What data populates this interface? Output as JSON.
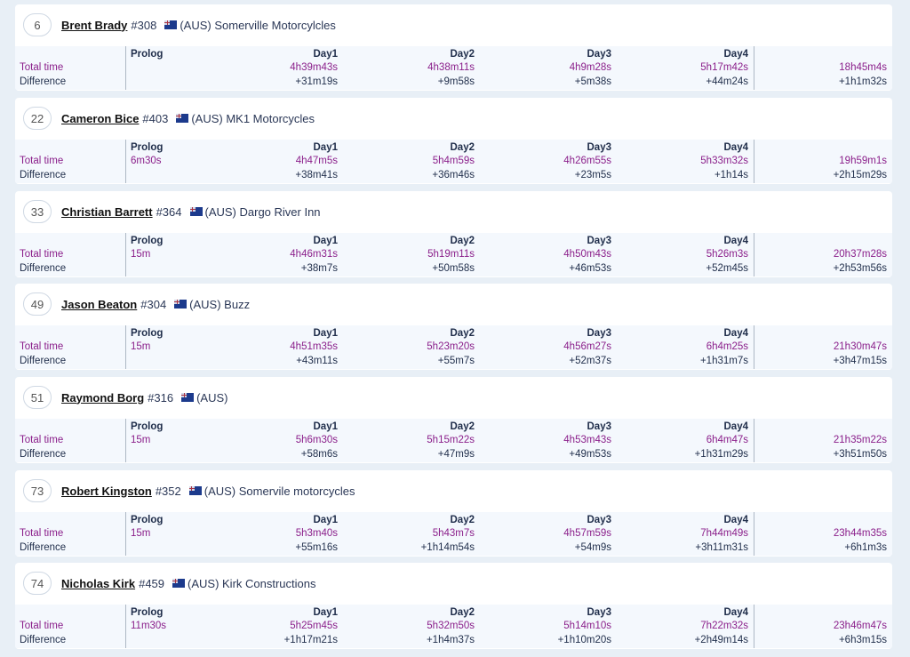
{
  "labels": {
    "total": "Total time",
    "difference": "Difference",
    "columns": [
      "Prolog",
      "Day1",
      "Day2",
      "Day3",
      "Day4"
    ]
  },
  "colors": {
    "time": "#8a1e8a",
    "text": "#1f2d4a",
    "background": "#e8eff6"
  },
  "riders": [
    {
      "rank": "6",
      "name": "Brent Brady",
      "number": "#308",
      "flag": "australia-flag-icon",
      "team": "(AUS) Somerville Motorcylcles",
      "total": [
        "",
        "4h39m43s",
        "4h38m11s",
        "4h9m28s",
        "5h17m42s",
        "18h45m4s"
      ],
      "diff": [
        "",
        "+31m19s",
        "+9m58s",
        "+5m38s",
        "+44m24s",
        "+1h1m32s"
      ]
    },
    {
      "rank": "22",
      "name": "Cameron Bice",
      "number": "#403",
      "flag": "australia-flag-icon",
      "team": "(AUS) MK1 Motorcycles",
      "total": [
        "6m30s",
        "4h47m5s",
        "5h4m59s",
        "4h26m55s",
        "5h33m32s",
        "19h59m1s"
      ],
      "diff": [
        "",
        "+38m41s",
        "+36m46s",
        "+23m5s",
        "+1h14s",
        "+2h15m29s"
      ]
    },
    {
      "rank": "33",
      "name": "Christian Barrett",
      "number": "#364",
      "flag": "australia-flag-icon",
      "team": "(AUS) Dargo River Inn",
      "total": [
        "15m",
        "4h46m31s",
        "5h19m11s",
        "4h50m43s",
        "5h26m3s",
        "20h37m28s"
      ],
      "diff": [
        "",
        "+38m7s",
        "+50m58s",
        "+46m53s",
        "+52m45s",
        "+2h53m56s"
      ]
    },
    {
      "rank": "49",
      "name": "Jason Beaton",
      "number": "#304",
      "flag": "australia-flag-icon",
      "team": "(AUS) Buzz",
      "total": [
        "15m",
        "4h51m35s",
        "5h23m20s",
        "4h56m27s",
        "6h4m25s",
        "21h30m47s"
      ],
      "diff": [
        "",
        "+43m11s",
        "+55m7s",
        "+52m37s",
        "+1h31m7s",
        "+3h47m15s"
      ]
    },
    {
      "rank": "51",
      "name": "Raymond Borg",
      "number": "#316",
      "flag": "australia-flag-icon",
      "team": "(AUS)",
      "total": [
        "15m",
        "5h6m30s",
        "5h15m22s",
        "4h53m43s",
        "6h4m47s",
        "21h35m22s"
      ],
      "diff": [
        "",
        "+58m6s",
        "+47m9s",
        "+49m53s",
        "+1h31m29s",
        "+3h51m50s"
      ]
    },
    {
      "rank": "73",
      "name": "Robert Kingston",
      "number": "#352",
      "flag": "australia-flag-icon",
      "team": "(AUS) Somervile motorcycles",
      "total": [
        "15m",
        "5h3m40s",
        "5h43m7s",
        "4h57m59s",
        "7h44m49s",
        "23h44m35s"
      ],
      "diff": [
        "",
        "+55m16s",
        "+1h14m54s",
        "+54m9s",
        "+3h11m31s",
        "+6h1m3s"
      ]
    },
    {
      "rank": "74",
      "name": "Nicholas Kirk",
      "number": "#459",
      "flag": "australia-flag-icon",
      "team": "(AUS) Kirk Constructions",
      "total": [
        "11m30s",
        "5h25m45s",
        "5h32m50s",
        "5h14m10s",
        "7h22m32s",
        "23h46m47s"
      ],
      "diff": [
        "",
        "+1h17m21s",
        "+1h4m37s",
        "+1h10m20s",
        "+2h49m14s",
        "+6h3m15s"
      ]
    }
  ]
}
